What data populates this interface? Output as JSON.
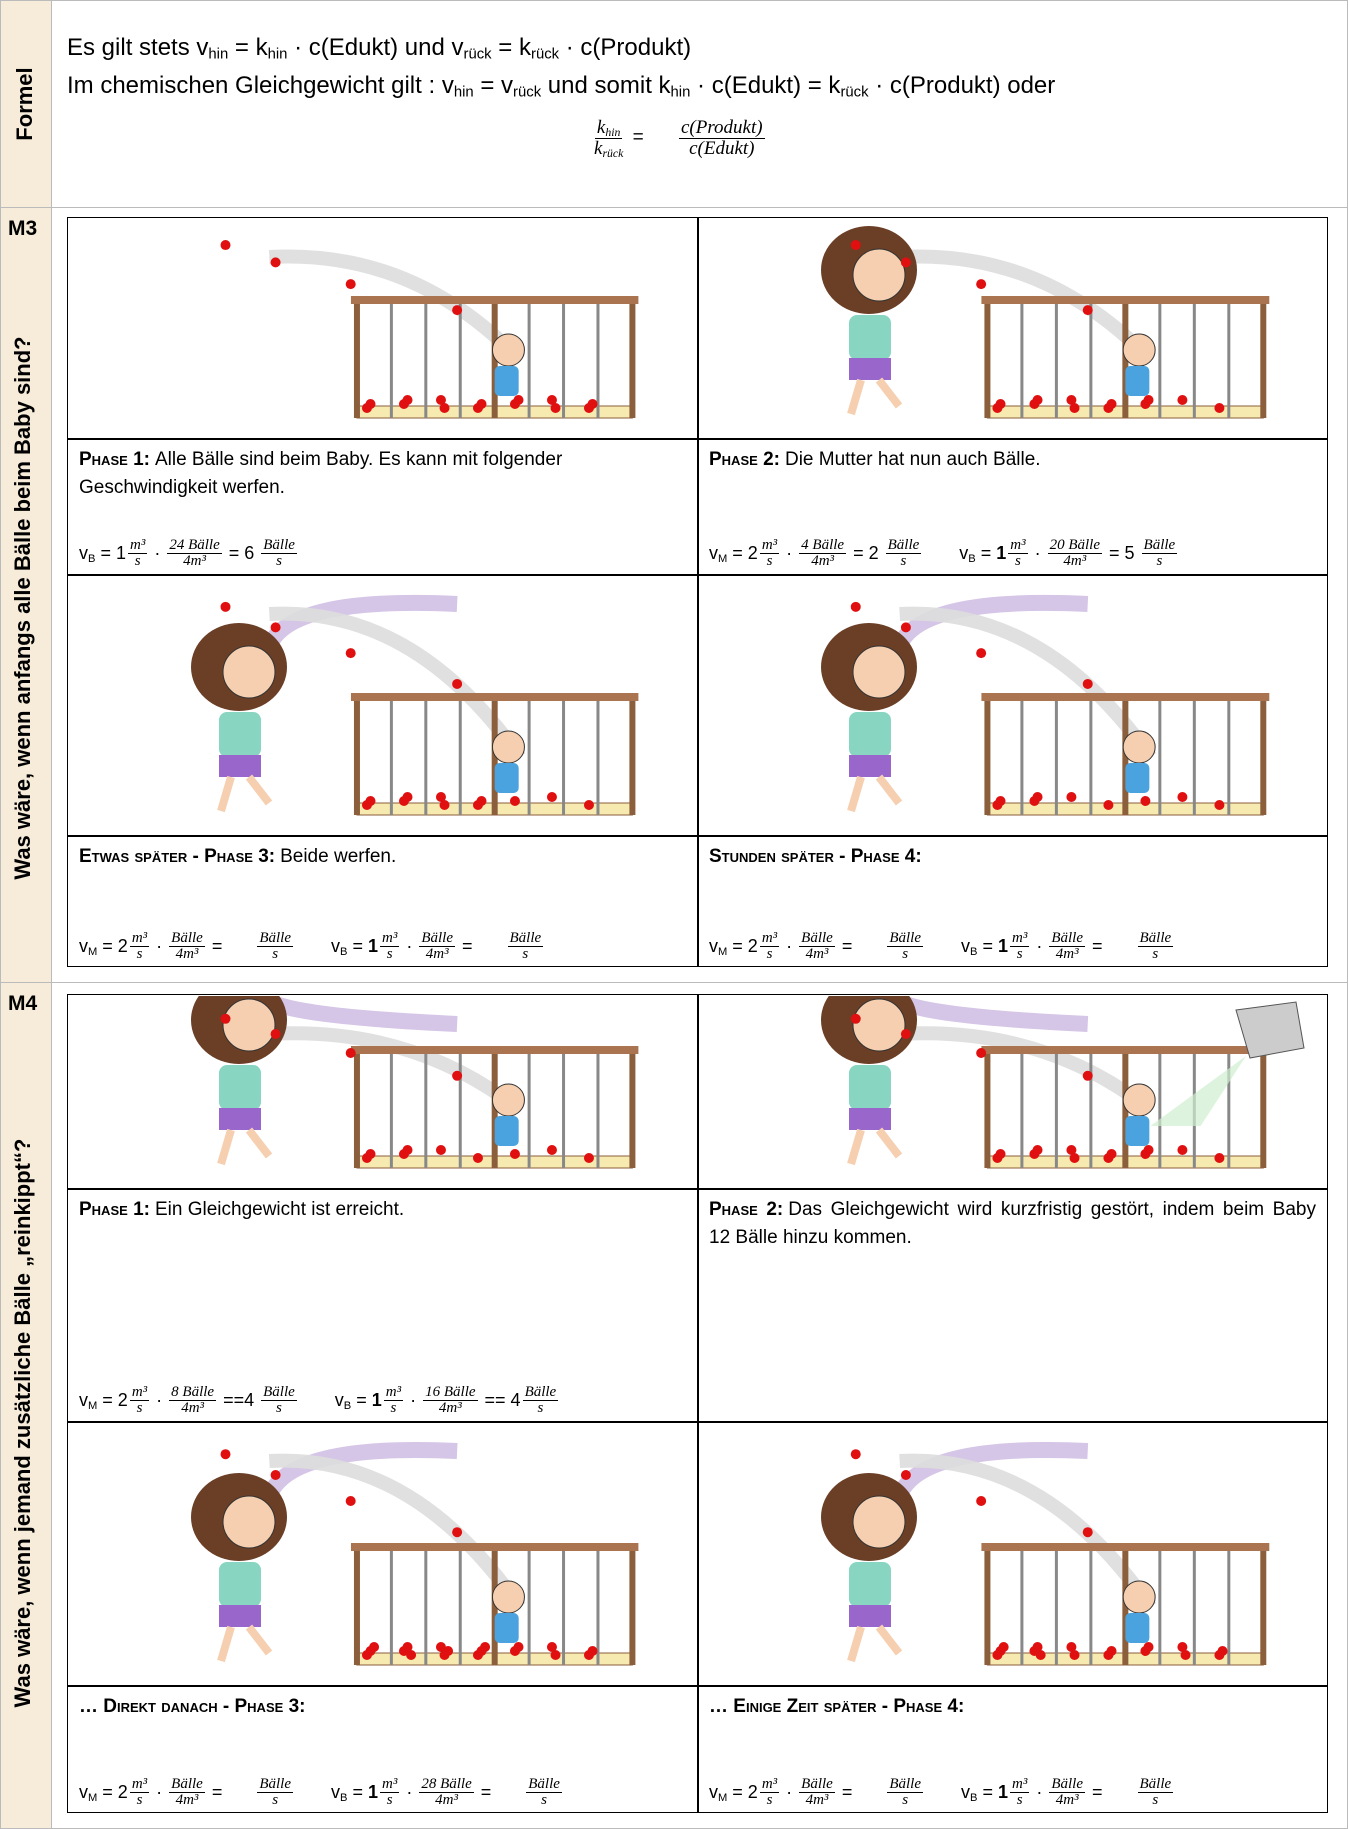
{
  "formula_section": {
    "label": "Formel",
    "lines": [
      [
        "Es gilt stets v",
        {
          "sub": "hin"
        },
        " = k",
        {
          "sub": "hin"
        },
        " · c(Edukt) und v",
        {
          "sub": "rück"
        },
        " = k",
        {
          "sub": "rück"
        },
        " · c(Produkt)"
      ],
      [
        "Im chemischen Gleichgewicht gilt : v",
        {
          "sub": "hin"
        },
        " = v",
        {
          "sub": "rück"
        },
        " und somit k",
        {
          "sub": "hin"
        },
        " · c(Edukt) = k",
        {
          "sub": "rück"
        },
        " · c(Produkt) oder"
      ]
    ],
    "equation": [
      {
        "num": [
          "k",
          {
            "sub": "hin"
          }
        ],
        "den": [
          "k",
          {
            "sub": "rück"
          }
        ]
      },
      " = ",
      {
        "num": "c(Produkt)",
        "den": "c(Edukt)"
      }
    ]
  },
  "m3": {
    "label": "M3",
    "question": "Was wäre, wenn anfangs alle Bälle beim Baby sind?",
    "panels": [
      {
        "heading": "Phase 1:",
        "text": "Alle Bälle sind beim Baby. Es kann mit folgender Geschwindigkeit werfen.",
        "formulas": [
          [
            "v",
            {
              "sub": "B"
            },
            " = 1",
            {
              "num": "m³",
              "den": "s"
            },
            " · ",
            {
              "num": "24 Bälle",
              "den": "4m³"
            },
            " = 6 ",
            {
              "num": "Bälle",
              "den": "s"
            }
          ]
        ]
      },
      {
        "heading": "Phase 2:",
        "text": "Die Mutter hat nun auch Bälle.",
        "formulas": [
          [
            "v",
            {
              "sub": "M"
            },
            " = 2",
            {
              "num": "m³",
              "den": "s"
            },
            " · ",
            {
              "num": "4 Bälle",
              "den": "4m³"
            },
            " = 2 ",
            {
              "num": "Bälle",
              "den": "s"
            }
          ],
          [
            "v",
            {
              "sub": "B"
            },
            " = ",
            {
              "bold": "1"
            },
            {
              "num": "m³",
              "den": "s"
            },
            " · ",
            {
              "num": "20 Bälle",
              "den": "4m³"
            },
            " = 5 ",
            {
              "num": "Bälle",
              "den": "s"
            }
          ]
        ]
      },
      {
        "heading": "Etwas später - Phase 3:",
        "text": "Beide werfen.",
        "formulas": [
          [
            "v",
            {
              "sub": "M"
            },
            " = 2",
            {
              "num": "m³",
              "den": "s"
            },
            " · ",
            {
              "num": "Bälle",
              "den": "4m³"
            },
            " = ",
            {
              "num": "Bälle",
              "den": "s"
            }
          ],
          [
            "v",
            {
              "sub": "B"
            },
            " = ",
            {
              "bold": "1"
            },
            {
              "num": "m³",
              "den": "s"
            },
            " · ",
            {
              "num": "Bälle",
              "den": "4m³"
            },
            " = ",
            {
              "num": "Bälle",
              "den": "s"
            }
          ]
        ]
      },
      {
        "heading": "Stunden später - Phase 4:",
        "formulas": [
          [
            "v",
            {
              "sub": "M"
            },
            " = 2",
            {
              "num": "m³",
              "den": "s"
            },
            " · ",
            {
              "num": "Bälle",
              "den": "4m³"
            },
            " = ",
            {
              "num": "Bälle",
              "den": "s"
            }
          ],
          [
            "v",
            {
              "sub": "B"
            },
            " = ",
            {
              "bold": "1"
            },
            {
              "num": "m³",
              "den": "s"
            },
            " · ",
            {
              "num": "Bälle",
              "den": "4m³"
            },
            " = ",
            {
              "num": "Bälle",
              "den": "s"
            }
          ]
        ]
      }
    ]
  },
  "m4": {
    "label": "M4",
    "question": "Was wäre, wenn jemand zusätzliche Bälle „reinkippt“?",
    "panels": [
      {
        "heading": "Phase 1:",
        "text": "Ein Gleichgewicht ist erreicht.",
        "formulas": [
          [
            "v",
            {
              "sub": "M"
            },
            " = 2",
            {
              "num": "m³",
              "den": "s"
            },
            " · ",
            {
              "num": "8 Bälle",
              "den": "4m³"
            },
            " ==4 ",
            {
              "num": "Bälle",
              "den": "s"
            }
          ],
          [
            "v",
            {
              "sub": "B"
            },
            " = ",
            {
              "bold": "1"
            },
            {
              "num": "m³",
              "den": "s"
            },
            " · ",
            {
              "num": "16 Bälle",
              "den": "4m³"
            },
            " == 4",
            {
              "num": "Bälle",
              "den": "s"
            }
          ]
        ]
      },
      {
        "heading": "Phase 2:",
        "text": "Das Gleichgewicht wird kurzfristig gestört, indem beim Baby 12 Bälle hinzu kommen."
      },
      {
        "heading": "… Direkt danach - Phase 3:",
        "formulas": [
          [
            "v",
            {
              "sub": "M"
            },
            " = 2",
            {
              "num": "m³",
              "den": "s"
            },
            " · ",
            {
              "num": "Bälle",
              "den": "4m³"
            },
            " = ",
            {
              "num": "Bälle",
              "den": "s"
            }
          ],
          [
            "v",
            {
              "sub": "B"
            },
            " = ",
            {
              "bold": "1"
            },
            {
              "num": "m³",
              "den": "s"
            },
            " · ",
            {
              "num": "28 Bälle",
              "den": "4m³"
            },
            " = ",
            {
              "num": "Bälle",
              "den": "s"
            }
          ]
        ]
      },
      {
        "heading": "… Einige Zeit später - Phase 4:",
        "formulas": [
          [
            "v",
            {
              "sub": "M"
            },
            " = 2",
            {
              "num": "m³",
              "den": "s"
            },
            " · ",
            {
              "num": "Bälle",
              "den": "4m³"
            },
            " = ",
            {
              "num": "Bälle",
              "den": "s"
            }
          ],
          [
            "v",
            {
              "sub": "B"
            },
            " = ",
            {
              "bold": "1"
            },
            {
              "num": "m³",
              "den": "s"
            },
            " · ",
            {
              "num": "Bälle",
              "den": "4m³"
            },
            " = ",
            {
              "num": "Bälle",
              "den": "s"
            }
          ]
        ]
      }
    ]
  }
}
